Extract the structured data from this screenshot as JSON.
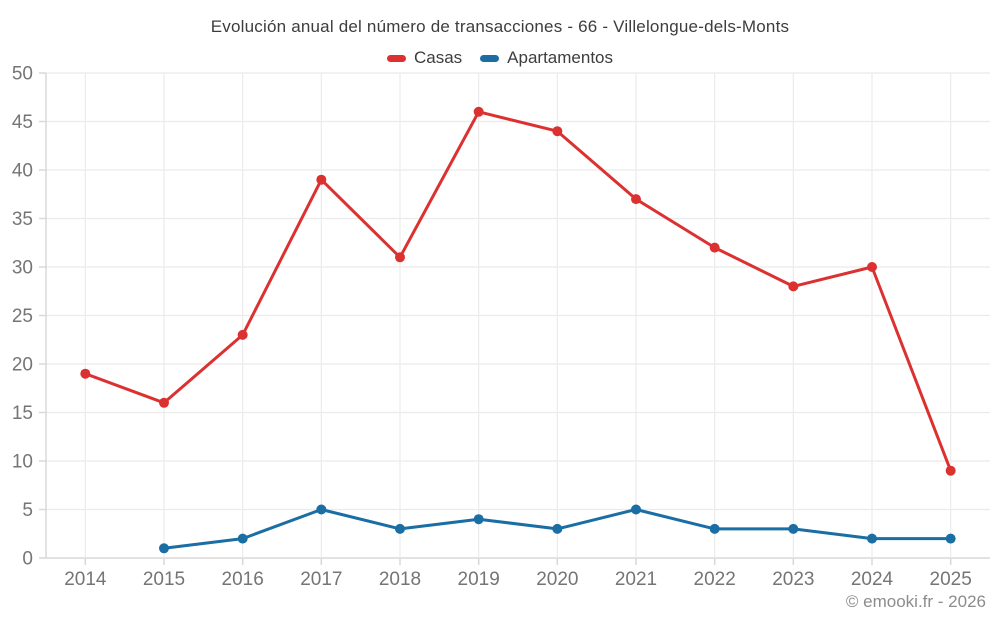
{
  "title": "Evolución anual del número de transacciones - 66 - Villelongue-dels-Monts",
  "copyright": "© emooki.fr - 2026",
  "colors": {
    "casas": "#dc3131",
    "apartamentos": "#1a6ea4",
    "grid": "#ebebeb",
    "axis": "#d8d8d8",
    "tick_label": "#757575",
    "title_text": "#3d3d3d",
    "copyright_text": "#8c8c8c",
    "background": "#ffffff"
  },
  "legend": {
    "items": [
      {
        "label": "Casas",
        "color_key": "casas"
      },
      {
        "label": "Apartamentos",
        "color_key": "apartamentos"
      }
    ]
  },
  "chart_data": {
    "type": "line",
    "title": "Evolución anual del número de transacciones - 66 - Villelongue-dels-Monts",
    "categories": [
      "2014",
      "2015",
      "2016",
      "2017",
      "2018",
      "2019",
      "2020",
      "2021",
      "2022",
      "2023",
      "2024",
      "2025"
    ],
    "series": [
      {
        "name": "Casas",
        "color_key": "casas",
        "values": [
          19,
          16,
          23,
          39,
          31,
          46,
          44,
          37,
          32,
          28,
          30,
          9
        ]
      },
      {
        "name": "Apartamentos",
        "color_key": "apartamentos",
        "values": [
          null,
          1,
          2,
          5,
          3,
          4,
          3,
          5,
          3,
          3,
          2,
          2
        ]
      }
    ],
    "xlabel": "",
    "ylabel": "",
    "ylim": [
      0,
      50
    ],
    "y_tick_step": 5,
    "grid": true,
    "legend_position": "top"
  }
}
